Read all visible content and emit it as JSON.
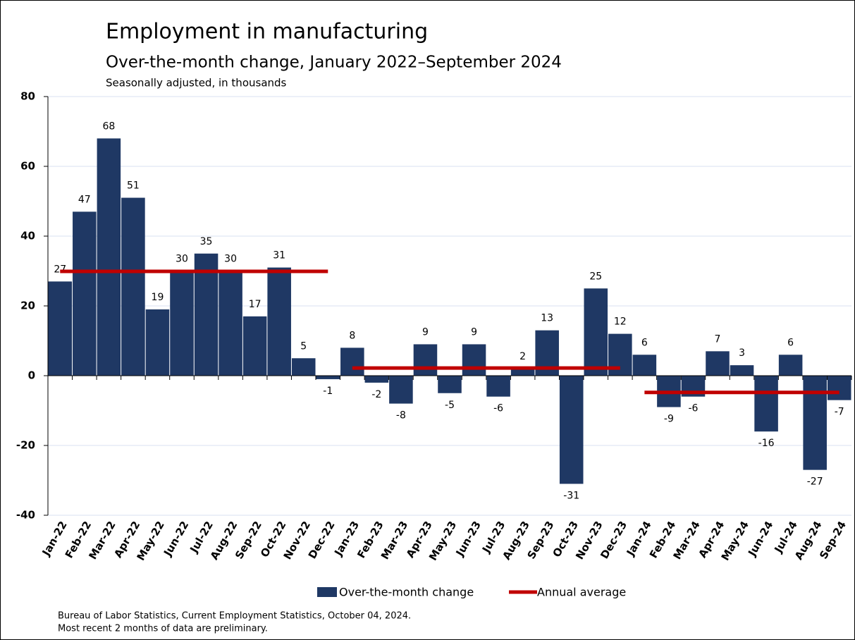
{
  "chart_data": {
    "type": "bar",
    "title": "Employment in manufacturing",
    "subtitle": "Over-the-month change, January 2022–September 2024",
    "note": "Seasonally adjusted, in thousands",
    "categories": [
      "Jan-22",
      "Feb-22",
      "Mar-22",
      "Apr-22",
      "May-22",
      "Jun-22",
      "Jul-22",
      "Aug-22",
      "Sep-22",
      "Oct-22",
      "Nov-22",
      "Dec-22",
      "Jan-23",
      "Feb-23",
      "Mar-23",
      "Apr-23",
      "May-23",
      "Jun-23",
      "Jul-23",
      "Aug-23",
      "Sep-23",
      "Oct-23",
      "Nov-23",
      "Dec-23",
      "Jan-24",
      "Feb-24",
      "Mar-24",
      "Apr-24",
      "May-24",
      "Jun-24",
      "Jul-24",
      "Aug-24",
      "Sep-24"
    ],
    "series": [
      {
        "name": "Over-the-month change",
        "color": "#1f3864",
        "values": [
          27,
          47,
          68,
          51,
          19,
          30,
          35,
          30,
          17,
          31,
          5,
          -1,
          8,
          -2,
          -8,
          9,
          -5,
          9,
          -6,
          2,
          13,
          -31,
          25,
          12,
          6,
          -9,
          -6,
          7,
          3,
          -16,
          6,
          -27,
          -7
        ]
      },
      {
        "name": "Annual average",
        "type": "line",
        "color": "#c00000",
        "values": [
          29.9,
          29.9,
          29.9,
          29.9,
          29.9,
          29.9,
          29.9,
          29.9,
          29.9,
          29.9,
          29.9,
          29.9,
          2.2,
          2.2,
          2.2,
          2.2,
          2.2,
          2.2,
          2.2,
          2.2,
          2.2,
          2.2,
          2.2,
          2.2,
          -4.8,
          -4.8,
          -4.8,
          -4.8,
          -4.8,
          -4.8,
          -4.8,
          -4.8,
          -4.8
        ]
      }
    ],
    "ylim": [
      -40,
      80
    ],
    "yticks": [
      -40,
      -20,
      0,
      20,
      40,
      60,
      80
    ],
    "grid": true,
    "legend": "bottom",
    "source": [
      "Bureau of Labor Statistics, Current Employment Statistics, October 04, 2024.",
      "Most recent 2 months of data are preliminary."
    ]
  }
}
